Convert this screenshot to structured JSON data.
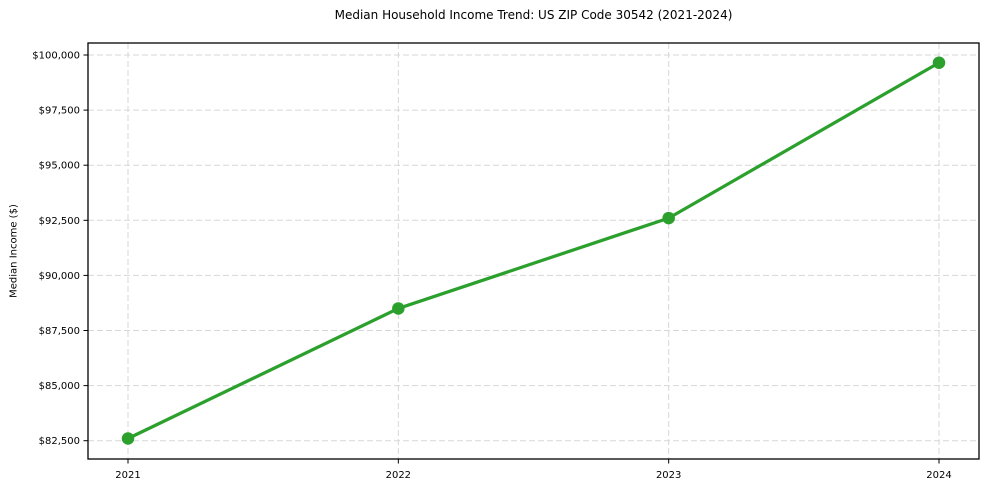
{
  "figure": {
    "background": "#ffffff",
    "text_color": "#000000"
  },
  "chart_data": {
    "type": "line",
    "title": "Median Household Income Trend: US ZIP Code 30542 (2021-2024)",
    "xlabel": "",
    "ylabel": "Median Income ($)",
    "x": [
      "2021",
      "2022",
      "2023",
      "2024"
    ],
    "series": [
      {
        "name": "Median Household Income",
        "values": [
          82600,
          88500,
          92600,
          99650
        ],
        "color": "#2ca02c",
        "marker": "circle",
        "marker_size": 12.5,
        "line_width": 3.25
      }
    ],
    "ylim": [
      81670,
      100545
    ],
    "yticks": {
      "values": [
        82500,
        85000,
        87500,
        90000,
        92500,
        95000,
        97500,
        100000
      ],
      "labels": [
        "$82,500",
        "$85,000",
        "$87,500",
        "$90,000",
        "$92,500",
        "$95,000",
        "$97,500",
        "$100,000"
      ]
    },
    "grid": {
      "show": true,
      "color": "#d7d7d7",
      "dash": "6 3"
    },
    "frame_color": "#000000",
    "tick_font_size": 10,
    "legend": false
  }
}
